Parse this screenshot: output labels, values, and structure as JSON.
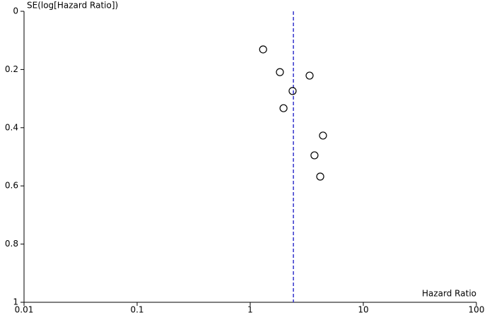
{
  "chart_data": {
    "type": "scatter",
    "y_label": "SE(log[Hazard Ratio])",
    "x_label": "Hazard Ratio",
    "x_log": true,
    "y_inverted": true,
    "xlim": [
      0.01,
      100
    ],
    "xticks": [
      0.01,
      0.1,
      1,
      10,
      100
    ],
    "ylim": [
      0,
      1
    ],
    "yticks": [
      0,
      0.2,
      0.4,
      0.6,
      0.8,
      1
    ],
    "reference_x": 2.41,
    "reference_color": "#3333cc",
    "marker_color": "#000000",
    "x": [
      1.3,
      1.83,
      3.35,
      2.37,
      1.97,
      4.4,
      3.7,
      4.16
    ],
    "values": [
      0.131,
      0.209,
      0.221,
      0.274,
      0.333,
      0.427,
      0.495,
      0.568
    ]
  }
}
